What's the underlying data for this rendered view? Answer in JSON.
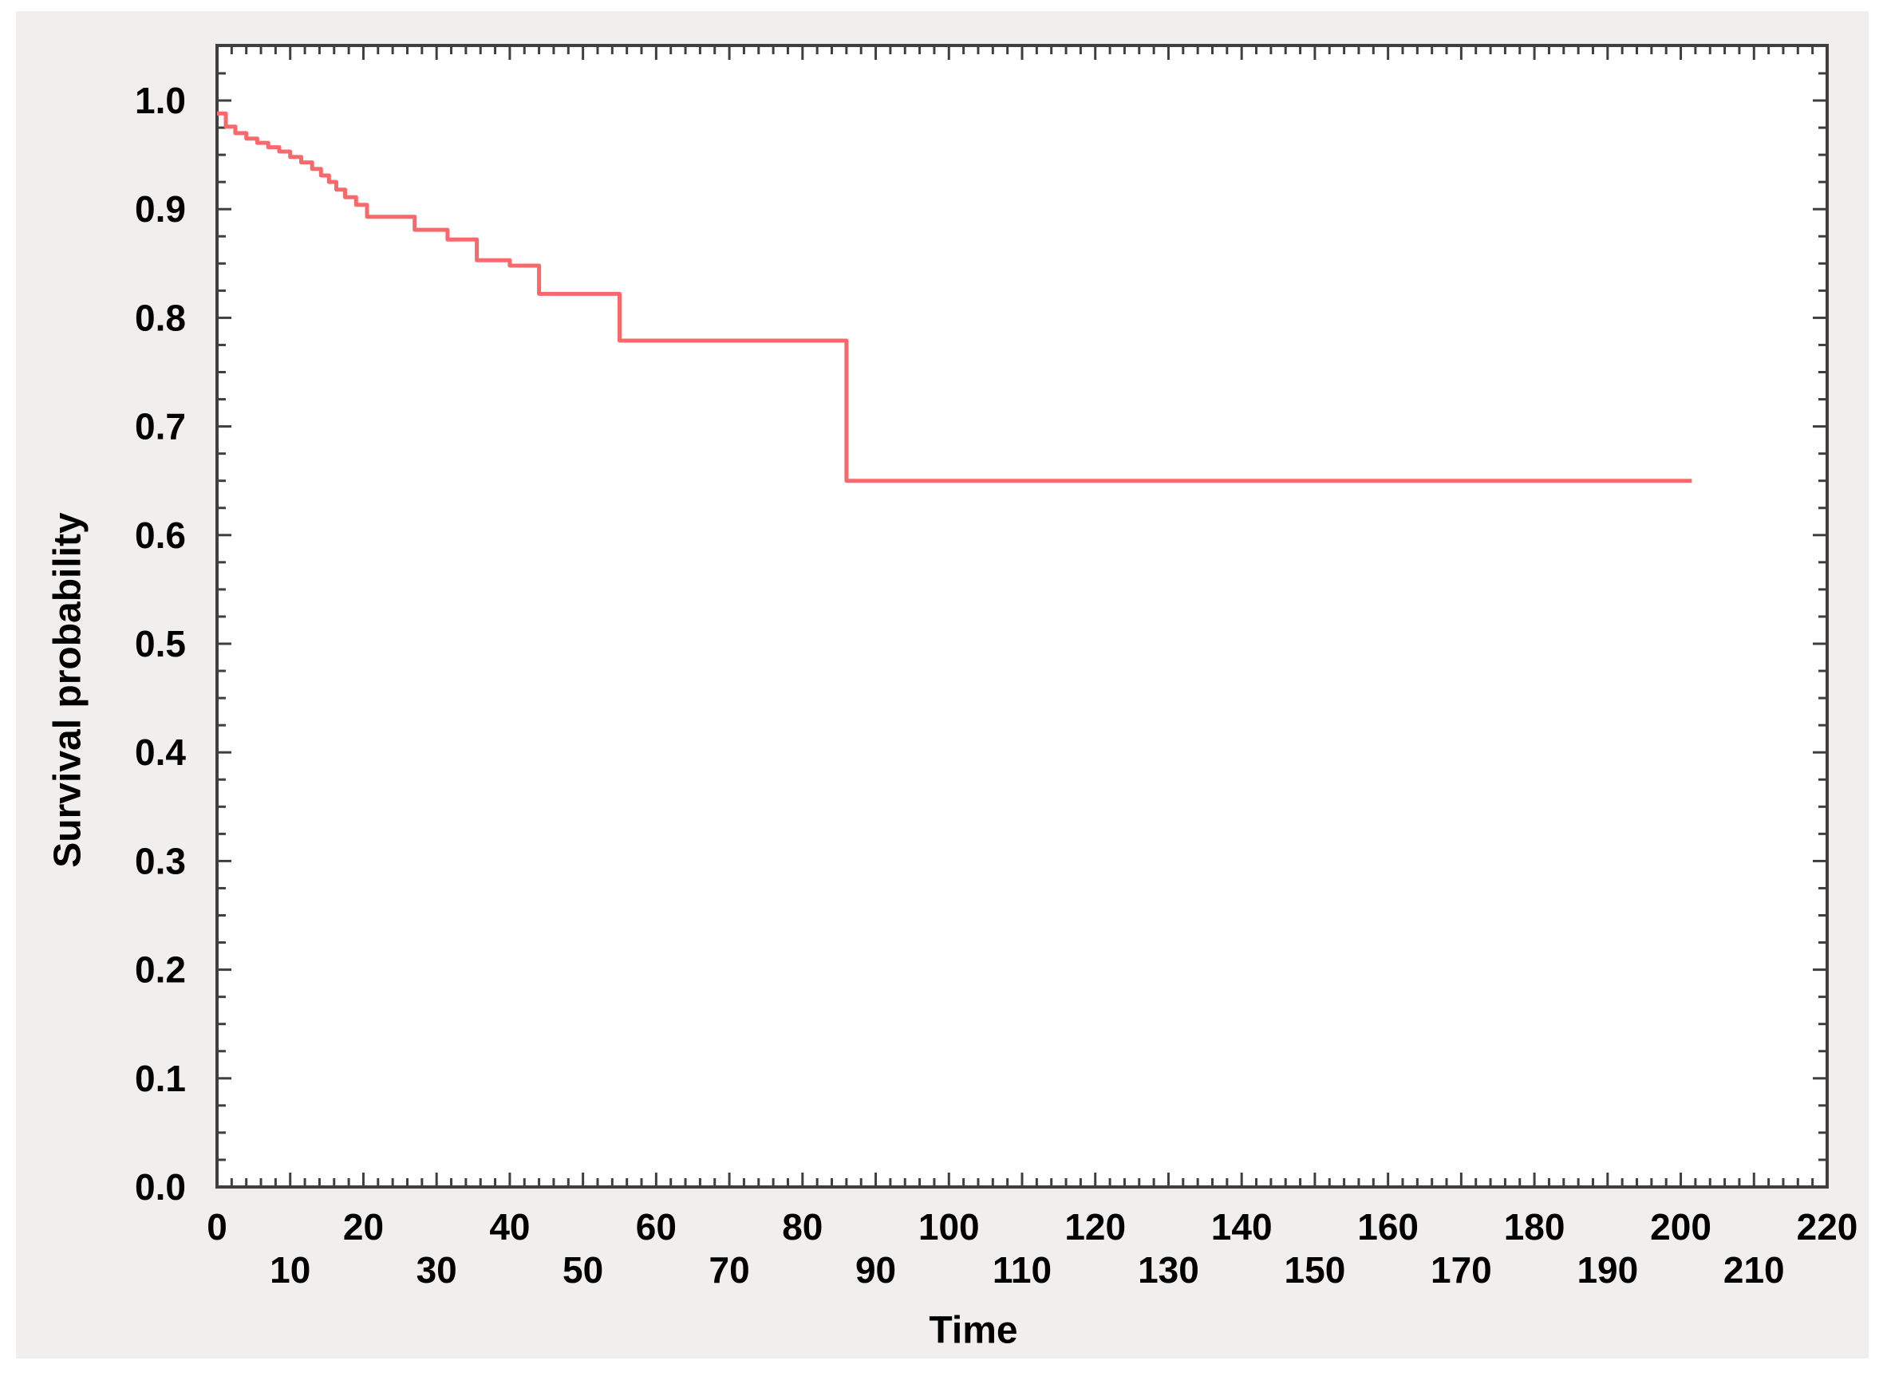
{
  "figure": {
    "background_color": "#ffffff",
    "panel_color": "#f0efed",
    "plot_background_color": "#ffffff",
    "frame_color": "#3f3f3f",
    "text_color": "#000000"
  },
  "chart_data": {
    "type": "line",
    "subtype": "kaplan-meier-step",
    "title": "",
    "xlabel": "Time",
    "ylabel": "Survival probability",
    "xlim": [
      0,
      220
    ],
    "ylim": [
      0.0,
      1.0
    ],
    "grid": false,
    "legend": false,
    "x_tick_labels_row1": [
      "0",
      "20",
      "40",
      "60",
      "80",
      "100",
      "120",
      "140",
      "160",
      "180",
      "200",
      "220"
    ],
    "x_tick_labels_row2": [
      "10",
      "30",
      "50",
      "70",
      "90",
      "110",
      "130",
      "150",
      "170",
      "190",
      "210"
    ],
    "x_minor_step": 2,
    "x_major_step": 10,
    "y_tick_labels": [
      "0.0",
      "0.1",
      "0.2",
      "0.3",
      "0.4",
      "0.5",
      "0.6",
      "0.7",
      "0.8",
      "0.9",
      "1.0"
    ],
    "y_minor_step": 0.025,
    "y_major_step": 0.1,
    "series": [
      {
        "name": "survival-curve",
        "color": "#f8696b",
        "start_probability": 0.988,
        "end_time": 201.5,
        "end_probability": 0.65,
        "steps": [
          [
            0.0,
            0.988
          ],
          [
            1.2,
            0.976
          ],
          [
            2.5,
            0.97
          ],
          [
            4.0,
            0.965
          ],
          [
            5.5,
            0.961
          ],
          [
            7.0,
            0.957
          ],
          [
            8.5,
            0.953
          ],
          [
            10.0,
            0.948
          ],
          [
            11.5,
            0.943
          ],
          [
            13.0,
            0.937
          ],
          [
            14.2,
            0.931
          ],
          [
            15.3,
            0.925
          ],
          [
            16.3,
            0.918
          ],
          [
            17.5,
            0.911
          ],
          [
            19.0,
            0.904
          ],
          [
            20.5,
            0.893
          ],
          [
            27.0,
            0.881
          ],
          [
            31.5,
            0.872
          ],
          [
            35.5,
            0.853
          ],
          [
            40.0,
            0.848
          ],
          [
            44.0,
            0.822
          ],
          [
            55.0,
            0.779
          ],
          [
            86.0,
            0.65
          ]
        ]
      }
    ]
  }
}
